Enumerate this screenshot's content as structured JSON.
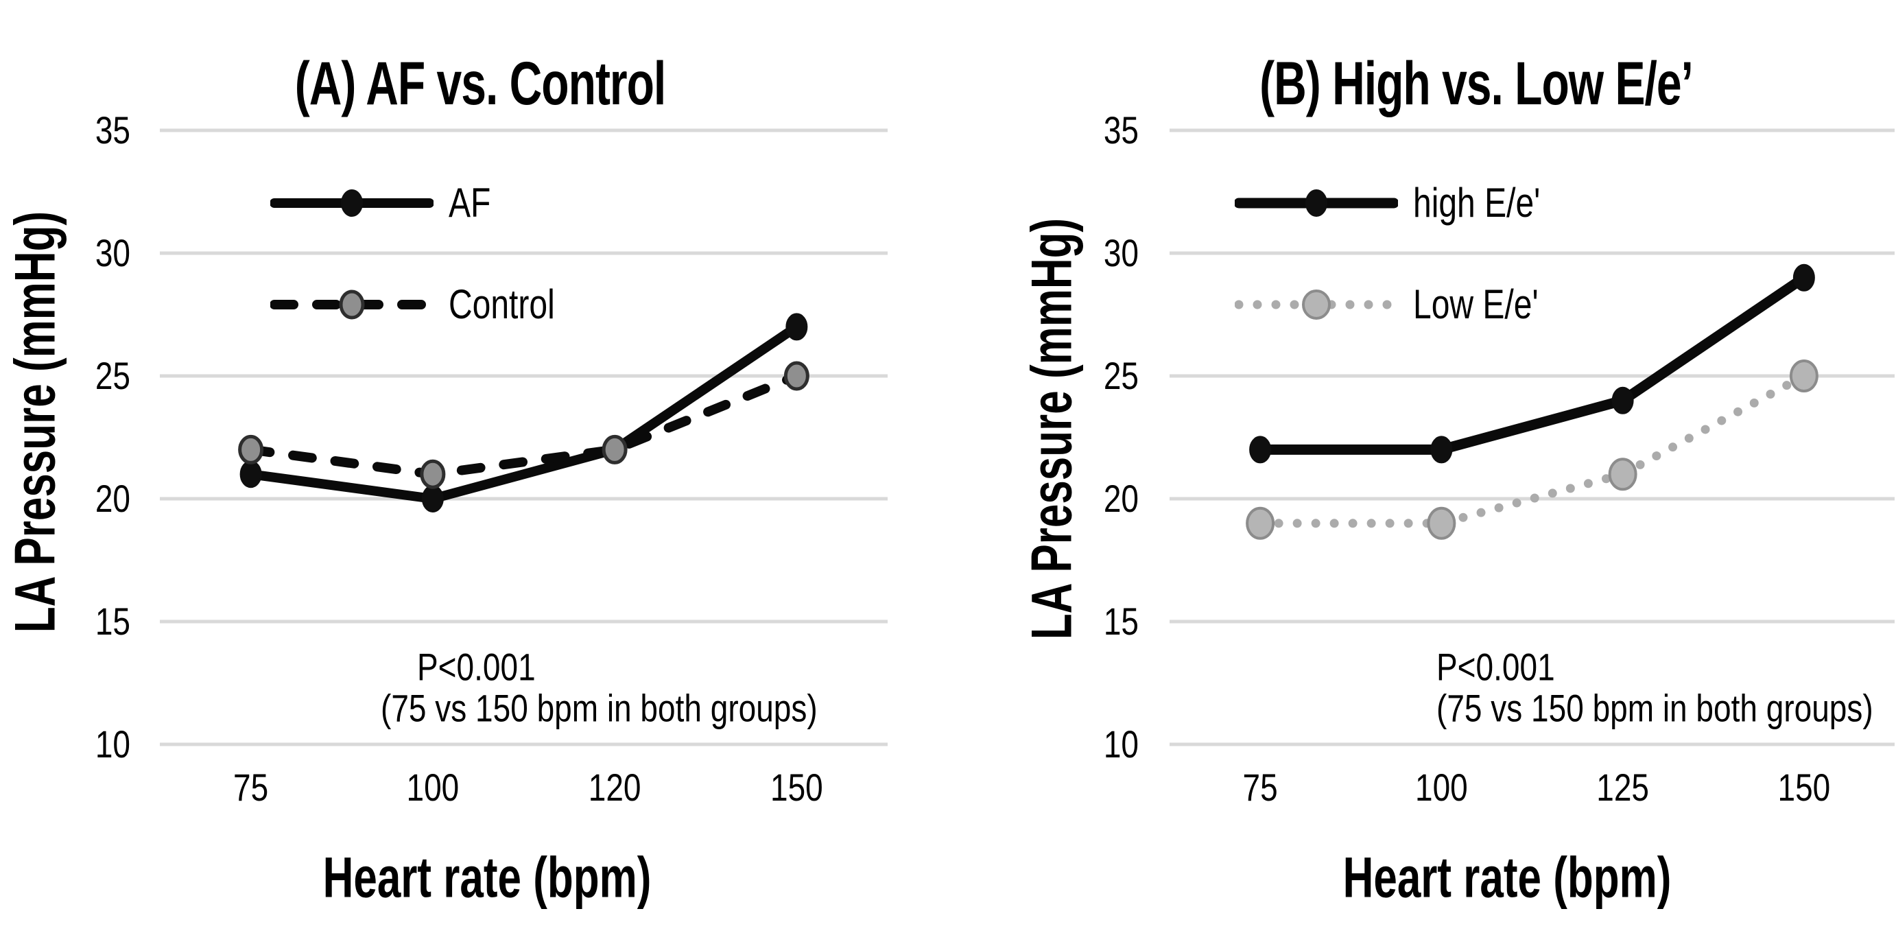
{
  "figure": {
    "background": "#ffffff",
    "text_color": "#000000",
    "grid_color": "#d9d9d9"
  },
  "chart_data": [
    {
      "type": "line",
      "title": "(A) AF vs. Control",
      "xlabel": "Heart rate (bpm)",
      "ylabel": "LA Pressure (mmHg)",
      "categories": [
        "75",
        "100",
        "120",
        "150"
      ],
      "x_axis_type": "categorical",
      "yticks": [
        35,
        30,
        25,
        20,
        15,
        10
      ],
      "ylim": [
        10,
        35
      ],
      "grid": "horizontal-only",
      "legend_position": "upper-left-inside",
      "annotation": {
        "line1": "P<0.001",
        "line2": "(75 vs 150 bpm in both groups)"
      },
      "series": [
        {
          "name": "AF",
          "values": [
            21,
            20,
            22,
            27
          ],
          "line": {
            "style": "solid",
            "color": "#0a0a0a",
            "width": 14
          },
          "marker": {
            "shape": "ellipse",
            "rx": 15,
            "ry": 19,
            "fill": "#0f0f0f",
            "stroke": "#0f0f0f",
            "stroke_width": 2
          }
        },
        {
          "name": "Control",
          "values": [
            22,
            21,
            22,
            25
          ],
          "line": {
            "style": "dashed",
            "color": "#0a0a0a",
            "width": 14
          },
          "marker": {
            "shape": "ellipse",
            "rx": 16,
            "ry": 19,
            "fill": "#8f8f8f",
            "stroke": "#2e2e2e",
            "stroke_width": 5
          }
        }
      ]
    },
    {
      "type": "line",
      "title": "(B) High vs. Low E/e’",
      "xlabel": "Heart rate (bpm)",
      "ylabel": "LA Pressure (mmHg)",
      "categories": [
        "75",
        "100",
        "125",
        "150"
      ],
      "x_axis_type": "categorical",
      "yticks": [
        35,
        30,
        25,
        20,
        15,
        10
      ],
      "ylim": [
        10,
        35
      ],
      "grid": "horizontal-only",
      "legend_position": "upper-left-inside",
      "annotation": {
        "line1": "P<0.001",
        "line2": "(75 vs 150 bpm in both groups)"
      },
      "series": [
        {
          "name": "high E/e'",
          "values": [
            22,
            22,
            24,
            29
          ],
          "line": {
            "style": "solid",
            "color": "#0a0a0a",
            "width": 15
          },
          "marker": {
            "shape": "ellipse",
            "rx": 15,
            "ry": 19,
            "fill": "#0f0f0f",
            "stroke": "#0f0f0f",
            "stroke_width": 2
          }
        },
        {
          "name": "Low E/e'",
          "values": [
            19,
            19,
            21,
            25
          ],
          "line": {
            "style": "dotted",
            "color": "#ababab",
            "width": 13
          },
          "marker": {
            "shape": "ellipse",
            "rx": 19,
            "ry": 22,
            "fill": "#b5b5b5",
            "stroke": "#8c8c8c",
            "stroke_width": 4
          }
        }
      ]
    }
  ]
}
